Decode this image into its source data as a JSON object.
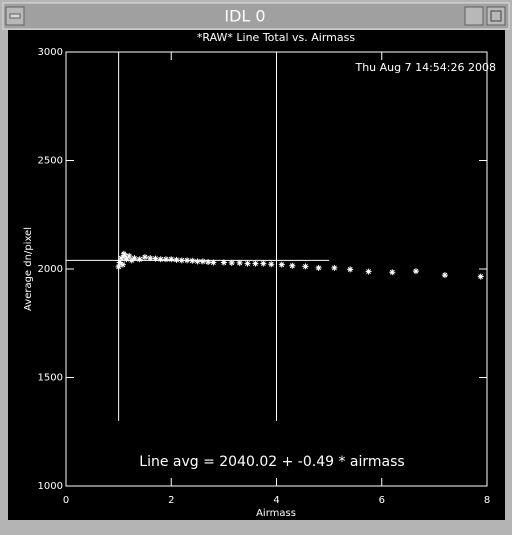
{
  "window_title": "IDL 0",
  "chart_data": {
    "type": "scatter",
    "title": "*RAW* Line Total vs. Airmass",
    "timestamp": "Thu Aug  7 14:54:26 2008",
    "annotation": "Line avg = 2040.02 + -0.49 * airmass",
    "xlabel": "Airmass",
    "ylabel": "Average dn/pixel",
    "xlim": [
      0,
      8
    ],
    "xticks": [
      0,
      2,
      4,
      6,
      8
    ],
    "ylim": [
      1000,
      3000
    ],
    "yticks": [
      1000,
      1500,
      2000,
      2500,
      3000
    ],
    "color": "#ffffff",
    "x": [
      1.0,
      1.02,
      1.05,
      1.08,
      1.1,
      1.12,
      1.15,
      1.2,
      1.25,
      1.3,
      1.4,
      1.5,
      1.6,
      1.7,
      1.8,
      1.9,
      2.0,
      2.1,
      2.2,
      2.3,
      2.4,
      2.5,
      2.6,
      2.7,
      2.8,
      3.0,
      3.15,
      3.3,
      3.45,
      3.6,
      3.75,
      3.9,
      4.1,
      4.3,
      4.55,
      4.8,
      5.1,
      5.4,
      5.75,
      6.2,
      6.65,
      7.2,
      7.88
    ],
    "values": [
      2010,
      2030,
      2050,
      2020,
      2070,
      2060,
      2045,
      2060,
      2040,
      2050,
      2045,
      2055,
      2050,
      2048,
      2045,
      2045,
      2045,
      2042,
      2040,
      2040,
      2038,
      2035,
      2035,
      2032,
      2030,
      2030,
      2028,
      2028,
      2025,
      2025,
      2025,
      2022,
      2020,
      2015,
      2012,
      2005,
      2005,
      1998,
      1988,
      1985,
      1990,
      1972,
      1965
    ],
    "vlines": [
      1,
      4
    ],
    "vline_ylim": [
      1300,
      3000
    ],
    "hline": 2040,
    "hline_xlim": [
      0,
      5
    ]
  }
}
